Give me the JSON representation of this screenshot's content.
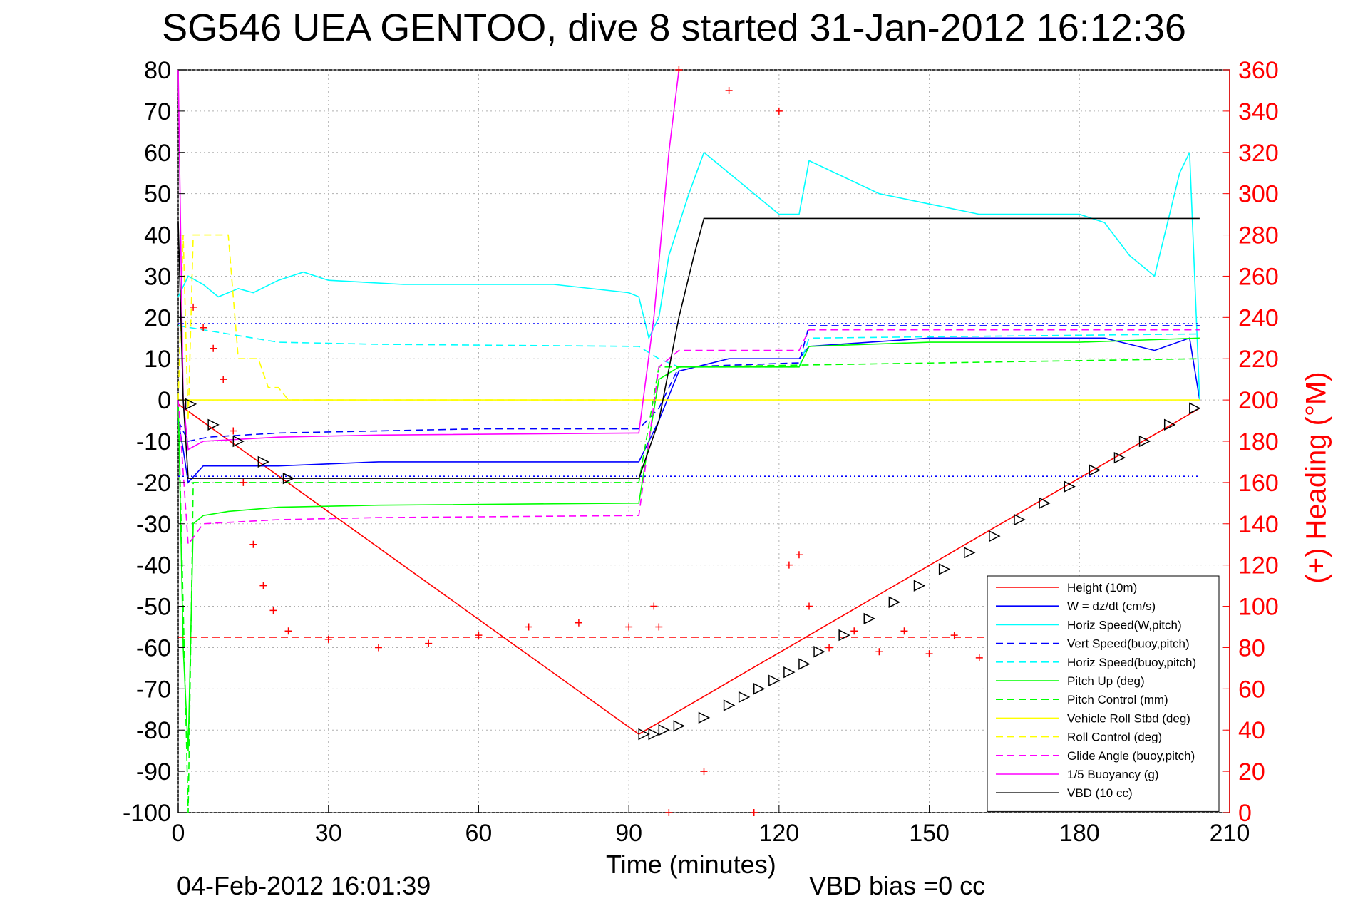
{
  "title": "SG546 UEA GENTOO, dive 8 started 31-Jan-2012 16:12:36",
  "footer_left": "04-Feb-2012 16:01:39",
  "footer_right": "VBD bias =0 cc",
  "colors": {
    "red": "#ff0000",
    "blue": "#0000ff",
    "cyan": "#00ffff",
    "green": "#00ff00",
    "yellow": "#ffff00",
    "magenta": "#ff00ff",
    "black": "#000000"
  },
  "chart_data": {
    "type": "line",
    "xlabel": "Time (minutes)",
    "ylabel_right": "(+) Heading (°M)",
    "xlim": [
      0,
      210
    ],
    "ylim": [
      -100,
      80
    ],
    "y2lim": [
      0,
      360
    ],
    "x_ticks": [
      0,
      30,
      60,
      90,
      120,
      150,
      180,
      210
    ],
    "y_ticks": [
      80,
      70,
      60,
      50,
      40,
      30,
      20,
      10,
      0,
      -10,
      -20,
      -30,
      -40,
      -50,
      -60,
      -70,
      -80,
      -90,
      -100
    ],
    "y2_ticks": [
      360,
      340,
      320,
      300,
      280,
      260,
      240,
      220,
      200,
      180,
      160,
      140,
      120,
      100,
      80,
      60,
      40,
      20,
      0
    ],
    "grid": true,
    "legend_position": "bottom-right",
    "series": [
      {
        "name": "Height (10m)",
        "color": "#ff0000",
        "style": "solid",
        "x": [
          0,
          92,
          204
        ],
        "y": [
          -1,
          -81,
          -2
        ]
      },
      {
        "name": "W = dz/dt (cm/s)",
        "color": "#0000ff",
        "style": "solid",
        "x": [
          0,
          1,
          2,
          5,
          10,
          20,
          40,
          60,
          80,
          92,
          96,
          100,
          110,
          124,
          126,
          150,
          170,
          185,
          195,
          202,
          204
        ],
        "y": [
          -5,
          -12,
          -20,
          -16,
          -16,
          -16,
          -15,
          -15,
          -15,
          -15,
          -5,
          7,
          10,
          10,
          13,
          15,
          15,
          15,
          12,
          15,
          0
        ]
      },
      {
        "name": "Horiz Speed(W,pitch)",
        "color": "#00ffff",
        "style": "solid",
        "x": [
          0,
          2,
          5,
          8,
          12,
          15,
          20,
          25,
          30,
          45,
          60,
          75,
          90,
          92,
          94,
          96,
          98,
          102,
          105,
          110,
          115,
          120,
          124,
          126,
          140,
          160,
          180,
          185,
          190,
          195,
          200,
          202,
          204
        ],
        "y": [
          25,
          30,
          28,
          25,
          27,
          26,
          29,
          31,
          29,
          28,
          28,
          28,
          26,
          25,
          15,
          20,
          35,
          50,
          60,
          55,
          50,
          45,
          45,
          58,
          50,
          45,
          45,
          43,
          35,
          30,
          55,
          60,
          0
        ]
      },
      {
        "name": "Vert Speed(buoy,pitch)",
        "color": "#0000ff",
        "style": "dashed",
        "x": [
          0,
          2,
          6,
          20,
          40,
          60,
          92,
          96,
          100,
          124,
          126,
          204
        ],
        "y": [
          -5,
          -10,
          -9,
          -8,
          -7.5,
          -7,
          -7,
          -2,
          8,
          9,
          18,
          18
        ]
      },
      {
        "name": "Horiz Speed(buoy,pitch)",
        "color": "#00ffff",
        "style": "dashed",
        "x": [
          0,
          5,
          10,
          20,
          40,
          92,
          96,
          100,
          124,
          126,
          204
        ],
        "y": [
          18,
          17,
          16,
          14,
          13.5,
          13,
          10,
          8,
          8,
          15,
          16
        ]
      },
      {
        "name": "Pitch Up (deg)",
        "color": "#00ff00",
        "style": "solid",
        "x": [
          0,
          1,
          2,
          3,
          5,
          10,
          20,
          40,
          92,
          96,
          100,
          124,
          126,
          150,
          180,
          204
        ],
        "y": [
          0,
          -60,
          -85,
          -30,
          -28,
          -27,
          -26,
          -25.5,
          -25,
          5,
          8,
          8,
          13,
          14,
          14,
          15
        ]
      },
      {
        "name": "Pitch Control (mm)",
        "color": "#00ff00",
        "style": "dashed",
        "x": [
          0,
          2,
          3,
          10,
          92,
          96,
          100,
          204
        ],
        "y": [
          0,
          -100,
          -20,
          -20,
          -20,
          8,
          8,
          10
        ]
      },
      {
        "name": "Vehicle Roll Stbd (deg)",
        "color": "#ffff00",
        "style": "solid",
        "x": [
          0,
          20,
          60,
          92,
          100,
          130,
          204
        ],
        "y": [
          0,
          0,
          0,
          0,
          0,
          0,
          0
        ]
      },
      {
        "name": "Roll Control (deg)",
        "color": "#ffff00",
        "style": "dashed",
        "x": [
          0,
          1,
          2,
          3,
          4,
          10,
          12,
          14,
          16,
          18,
          20,
          22,
          92
        ],
        "y": [
          0,
          40,
          -5,
          40,
          40,
          40,
          10,
          10,
          10,
          3,
          3,
          0,
          0
        ]
      },
      {
        "name": "Glide Angle (buoy,pitch)",
        "color": "#ff00ff",
        "style": "dashed",
        "x": [
          0,
          2,
          5,
          20,
          40,
          92,
          96,
          100,
          124,
          126,
          204
        ],
        "y": [
          0,
          -35,
          -30,
          -29,
          -28.5,
          -28,
          8,
          12,
          12,
          17,
          17
        ]
      },
      {
        "name": "1/5 Buoyancy (g)",
        "color": "#ff00ff",
        "style": "solid",
        "x": [
          0,
          1,
          2,
          5,
          20,
          40,
          92,
          95,
          98,
          100
        ],
        "y": [
          80,
          0,
          -12,
          -10,
          -9,
          -8.5,
          -8,
          20,
          60,
          80
        ]
      },
      {
        "name": "VBD (10 cc)",
        "color": "#000000",
        "style": "solid",
        "x": [
          0,
          1,
          2,
          5,
          92,
          96,
          100,
          103,
          105,
          204
        ],
        "y": [
          43,
          0,
          -19,
          -19,
          -19,
          -5,
          20,
          35,
          44,
          44
        ]
      },
      {
        "axis": "right",
        "color": "#ff0000",
        "style": "plus-markers",
        "x": [
          3,
          5,
          7,
          9,
          11,
          13,
          15,
          17,
          19,
          22,
          30,
          40,
          50,
          60,
          70,
          80,
          90,
          95,
          96,
          98,
          100,
          105,
          110,
          115,
          120,
          122,
          124,
          126,
          130,
          135,
          140,
          145,
          150,
          155,
          160
        ],
        "y": [
          245,
          235,
          225,
          210,
          185,
          160,
          130,
          110,
          98,
          88,
          84,
          80,
          82,
          86,
          90,
          92,
          90,
          100,
          90,
          0,
          360,
          20,
          350,
          0,
          340,
          120,
          125,
          100,
          80,
          88,
          78,
          88,
          77,
          86,
          75
        ]
      },
      {
        "color": "#ff0000",
        "style": "dashed",
        "x": [
          0,
          204
        ],
        "y": [
          -57.5,
          -57.5
        ]
      },
      {
        "color": "#0000ff",
        "style": "dotted",
        "x": [
          0,
          204
        ],
        "y": [
          18.5,
          18.5
        ]
      },
      {
        "color": "#0000ff",
        "style": "dotted",
        "x": [
          0,
          204
        ],
        "y": [
          -18.5,
          -18.5
        ]
      },
      {
        "style": "triangle-markers",
        "color": "#000000",
        "x": [
          2.5,
          7,
          12,
          17,
          22,
          93,
          95,
          97,
          100,
          105,
          110,
          113,
          116,
          119,
          122,
          125,
          128,
          133,
          138,
          143,
          148,
          153,
          158,
          163,
          168,
          173,
          178,
          183,
          188,
          193,
          198,
          203
        ],
        "y": [
          -1,
          -6,
          -10,
          -15,
          -19,
          -81,
          -81,
          -80,
          -79,
          -77,
          -74,
          -72,
          -70,
          -68,
          -66,
          -64,
          -61,
          -57,
          -53,
          -49,
          -45,
          -41,
          -37,
          -33,
          -29,
          -25,
          -21,
          -17,
          -14,
          -10,
          -6,
          -2
        ]
      }
    ]
  }
}
